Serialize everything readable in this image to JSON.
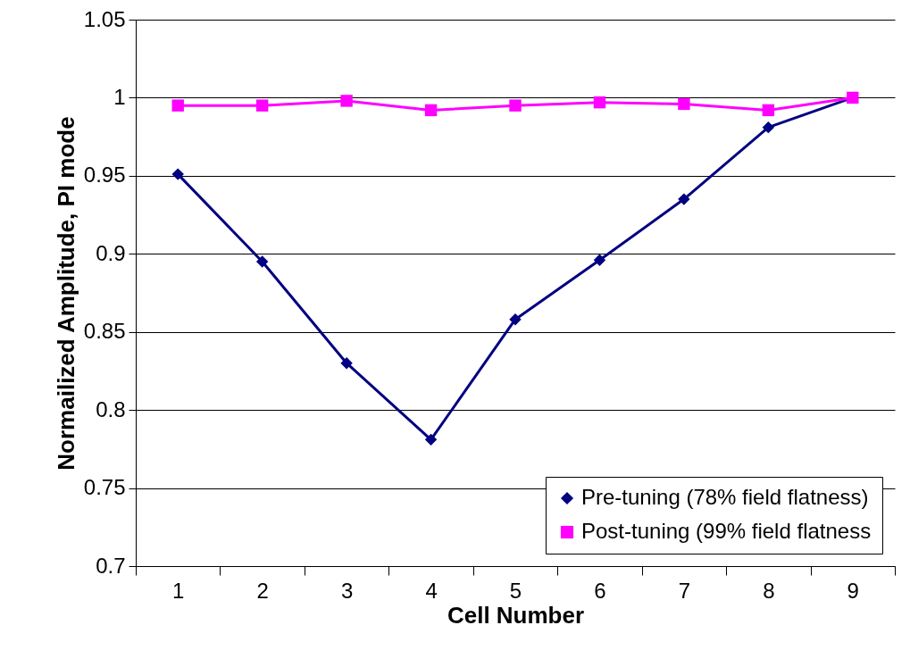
{
  "chart_data": {
    "type": "line",
    "xlabel": "Cell Number",
    "ylabel": "Normailized Amplitude, PI mode",
    "categories": [
      "1",
      "2",
      "3",
      "4",
      "5",
      "6",
      "7",
      "8",
      "9"
    ],
    "series": [
      {
        "name": "Pre-tuning (78% field flatness)",
        "color": "#000080",
        "marker": "diamond",
        "values": [
          0.951,
          0.895,
          0.83,
          0.781,
          0.858,
          0.896,
          0.935,
          0.981,
          1.0
        ]
      },
      {
        "name": "Post-tuning (99% field flatness",
        "color": "#ff00ff",
        "marker": "square",
        "values": [
          0.995,
          0.995,
          0.998,
          0.992,
          0.995,
          0.997,
          0.996,
          0.992,
          1.0
        ]
      }
    ],
    "ylim": [
      0.7,
      1.05
    ],
    "yticks": [
      0.7,
      0.75,
      0.8,
      0.85,
      0.9,
      0.95,
      1,
      1.05
    ],
    "grid": "y",
    "legend": "bottom right"
  }
}
